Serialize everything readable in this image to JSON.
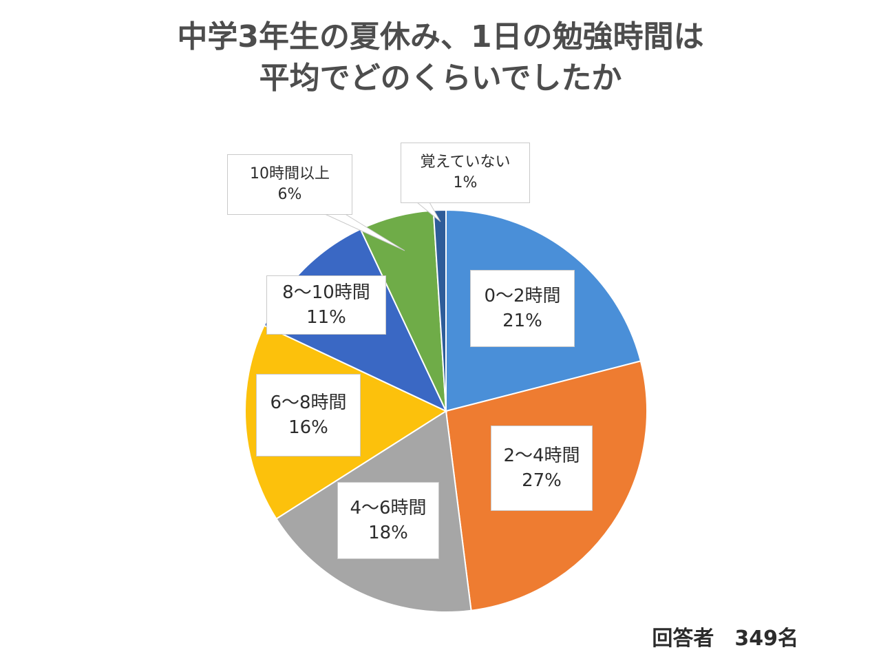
{
  "chart_data": {
    "type": "pie",
    "title": [
      "中学3年生の夏休み、1日の勉強時間は",
      "平均でどのくらいでしたか"
    ],
    "slices": [
      {
        "label": "0〜2時間",
        "value": 21,
        "display": "21%",
        "color": "#4a8fd8"
      },
      {
        "label": "2〜4時間",
        "value": 27,
        "display": "27%",
        "color": "#ee7c31"
      },
      {
        "label": "4〜6時間",
        "value": 18,
        "display": "18%",
        "color": "#a6a6a6"
      },
      {
        "label": "6〜8時間",
        "value": 16,
        "display": "16%",
        "color": "#fcc10c"
      },
      {
        "label": "8〜10時間",
        "value": 11,
        "display": "11%",
        "color": "#3a68c4"
      },
      {
        "label": "10時間以上",
        "value": 6,
        "display": "6%",
        "color": "#6fac48"
      },
      {
        "label": "覚えていない",
        "value": 1,
        "display": "1%",
        "color": "#2e5c99"
      }
    ],
    "footnote": "回答者　349名"
  }
}
